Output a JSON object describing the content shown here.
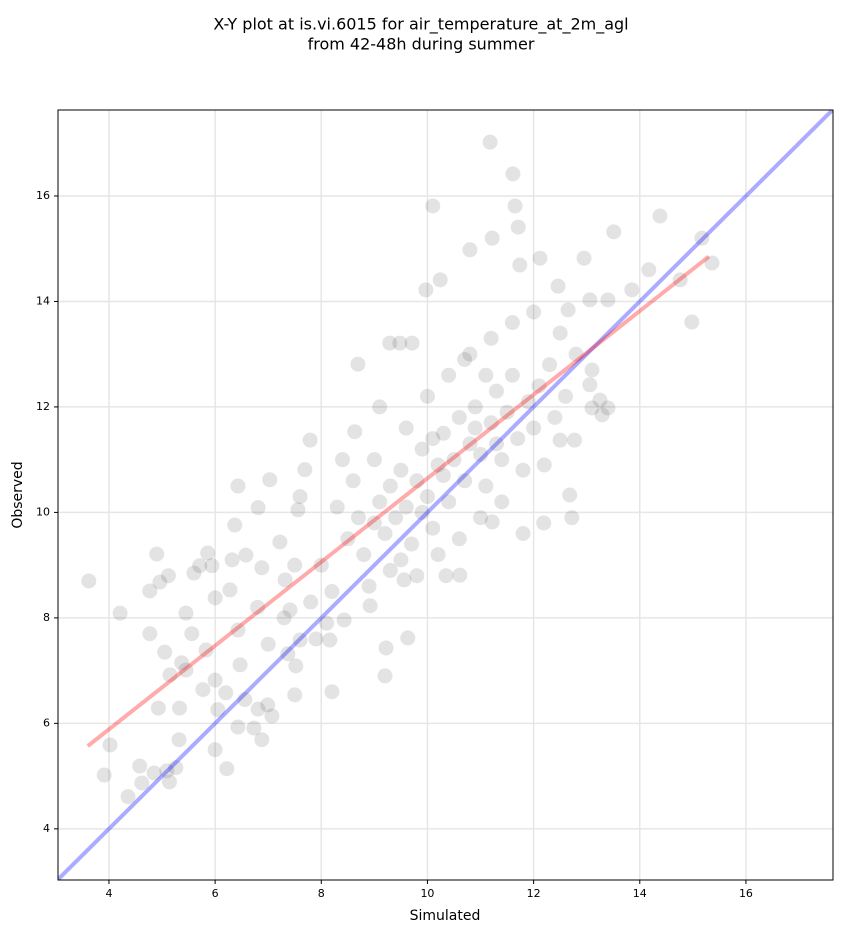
{
  "chart_data": {
    "type": "scatter",
    "title": [
      "X-Y plot at is.vi.6015 for air_temperature_at_2m_agl",
      "from 42-48h during summer"
    ],
    "xlabel": "Simulated",
    "ylabel": "Observed",
    "xlim": [
      3.04,
      17.64
    ],
    "ylim": [
      3.03,
      17.63
    ],
    "xticks": [
      4,
      6,
      8,
      10,
      12,
      14,
      16
    ],
    "yticks": [
      4,
      6,
      8,
      10,
      12,
      14,
      16
    ],
    "grid": true,
    "color": "#000000",
    "alpha": 0.11,
    "x": [
      3.62,
      4.21,
      4.02,
      3.91,
      4.36,
      4.58,
      4.62,
      4.85,
      5.09,
      5.14,
      5.26,
      5.32,
      4.93,
      5.33,
      6.22,
      6.0,
      4.9,
      4.96,
      5.12,
      4.77,
      4.77,
      5.05,
      5.15,
      5.45,
      5.37,
      5.45,
      5.6,
      5.71,
      5.86,
      5.94,
      6.0,
      5.56,
      5.83,
      5.77,
      6.0,
      6.05,
      6.43,
      6.37,
      6.32,
      6.58,
      6.28,
      6.43,
      6.47,
      6.2,
      6.56,
      6.81,
      6.88,
      6.73,
      6.43,
      6.99,
      7.07,
      7.03,
      6.81,
      6.88,
      7.22,
      7.32,
      7.41,
      7.52,
      7.5,
      7.37,
      7.79,
      7.69,
      7.56,
      7.6,
      8.16,
      8.2,
      8.63,
      8.69,
      9.29,
      9.48,
      9.71,
      9.97,
      10.1,
      10.24,
      10.8,
      11.18,
      11.22,
      11.61,
      11.65,
      11.71,
      11.74,
      12.12,
      12.46,
      12.65,
      12.95,
      13.06,
      13.51,
      13.4,
      14.17,
      14.38,
      14.76,
      14.98,
      15.17,
      15.36,
      13.85,
      13.06,
      13.25,
      13.4,
      13.29,
      13.1,
      12.72,
      12.68,
      12.19,
      12.5,
      12.77,
      11.22,
      10.61,
      10.35,
      9.63,
      9.56,
      9.22,
      9.2,
      8.92,
      8.43,
      8.5,
      8.8,
      9.0,
      9.1,
      9.2,
      9.3,
      9.4,
      9.5,
      9.6,
      9.7,
      9.8,
      9.9,
      10.0,
      10.1,
      10.2,
      10.3,
      10.4,
      10.5,
      10.6,
      10.7,
      10.8,
      10.9,
      11.0,
      11.1,
      11.2,
      11.3,
      11.4,
      11.5,
      11.6,
      11.7,
      11.8,
      11.9,
      12.0,
      12.1,
      12.2,
      12.3,
      12.4,
      8.2,
      8.0,
      7.8,
      8.3,
      8.6,
      8.9,
      9.0,
      9.3,
      9.6,
      9.8,
      10.0,
      10.2,
      10.4,
      10.6,
      10.8,
      11.0,
      11.2,
      11.4,
      11.6,
      11.8,
      12.0,
      7.5,
      7.3,
      7.0,
      6.8,
      7.6,
      8.4,
      9.1,
      10.7,
      11.1,
      10.3,
      9.9,
      10.9,
      8.7,
      9.5,
      11.3,
      10.1,
      12.6,
      12.8,
      13.1,
      12.5,
      7.9,
      8.1
    ],
    "values": [
      8.7,
      8.09,
      5.59,
      5.02,
      4.61,
      5.19,
      4.87,
      5.06,
      5.1,
      4.89,
      5.16,
      5.69,
      6.29,
      6.29,
      5.14,
      5.5,
      9.21,
      8.68,
      8.8,
      8.51,
      7.7,
      7.35,
      6.92,
      7.01,
      7.15,
      8.09,
      8.85,
      8.99,
      9.23,
      8.99,
      8.38,
      7.7,
      7.39,
      6.64,
      6.82,
      6.26,
      10.5,
      9.76,
      9.1,
      9.19,
      8.53,
      7.77,
      7.11,
      6.58,
      6.45,
      6.27,
      5.69,
      5.91,
      5.93,
      6.35,
      6.14,
      10.62,
      10.09,
      8.95,
      9.44,
      8.72,
      8.15,
      7.09,
      6.54,
      7.32,
      11.37,
      10.81,
      10.05,
      7.58,
      7.58,
      6.6,
      11.53,
      12.81,
      13.21,
      13.21,
      13.21,
      14.22,
      15.81,
      14.41,
      14.98,
      17.02,
      15.2,
      16.42,
      15.81,
      15.41,
      14.69,
      14.82,
      14.29,
      13.84,
      14.82,
      14.03,
      15.32,
      14.03,
      14.6,
      15.62,
      14.41,
      13.61,
      15.2,
      14.73,
      14.22,
      12.42,
      12.13,
      11.98,
      11.85,
      11.98,
      9.9,
      10.33,
      9.8,
      11.37,
      11.37,
      9.82,
      8.81,
      8.8,
      7.62,
      8.72,
      7.43,
      6.9,
      8.23,
      7.96,
      9.5,
      9.2,
      9.8,
      10.2,
      9.6,
      10.5,
      9.9,
      10.8,
      10.1,
      9.4,
      10.6,
      11.2,
      10.3,
      9.7,
      10.9,
      11.5,
      10.2,
      11.0,
      11.8,
      10.6,
      11.3,
      12.0,
      11.1,
      10.5,
      11.7,
      12.3,
      11.0,
      11.9,
      12.6,
      11.4,
      10.8,
      12.1,
      11.6,
      12.4,
      10.9,
      12.8,
      11.8,
      8.5,
      9.0,
      8.3,
      10.1,
      10.6,
      8.6,
      11.0,
      8.9,
      11.6,
      8.8,
      12.2,
      9.2,
      12.6,
      9.5,
      13.0,
      9.9,
      13.3,
      10.2,
      13.6,
      9.6,
      13.8,
      9.0,
      8.0,
      7.5,
      8.2,
      10.3,
      11.0,
      12.0,
      12.9,
      12.6,
      10.7,
      10.0,
      11.6,
      9.9,
      9.1,
      11.3,
      11.4,
      12.2,
      13.0,
      12.7,
      13.4,
      7.6,
      7.9
    ],
    "lines": [
      {
        "color": "#0000ff",
        "x": [
          3.04,
          17.64
        ],
        "y": [
          3.04,
          17.64
        ]
      },
      {
        "color": "#ff0000",
        "x": [
          3.6,
          15.3
        ],
        "y": [
          5.57,
          14.85
        ]
      }
    ]
  }
}
